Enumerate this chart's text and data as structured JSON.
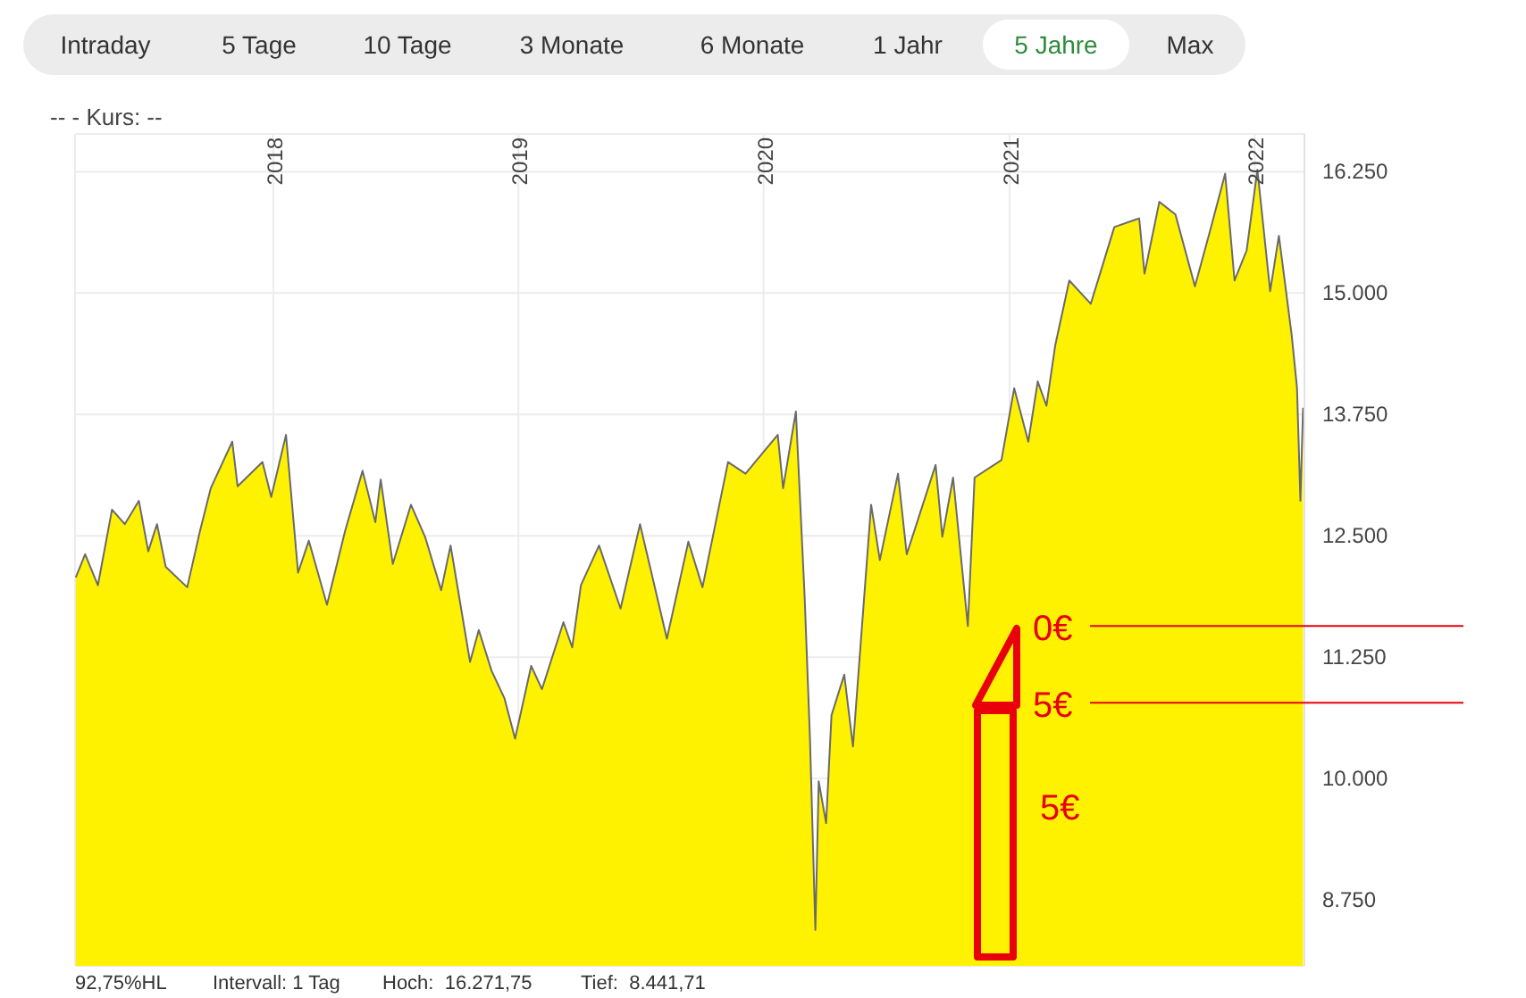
{
  "chart_data": {
    "type": "area",
    "x": [
      "2017-03-13",
      "2017-03-27",
      "2017-04-15",
      "2017-05-06",
      "2017-05-25",
      "2017-06-15",
      "2017-06-29",
      "2017-07-12",
      "2017-07-25",
      "2017-08-26",
      "2017-09-14",
      "2017-09-30",
      "2017-11-01",
      "2017-11-09",
      "2017-12-16",
      "2017-12-29",
      "2018-01-20",
      "2018-02-07",
      "2018-02-23",
      "2018-03-22",
      "2018-04-18",
      "2018-05-14",
      "2018-06-02",
      "2018-06-10",
      "2018-06-28",
      "2018-07-25",
      "2018-08-15",
      "2018-09-08",
      "2018-09-22",
      "2018-10-21",
      "2018-11-03",
      "2018-11-22",
      "2018-12-11",
      "2018-12-27",
      "2019-01-20",
      "2019-02-05",
      "2019-03-09",
      "2019-03-22",
      "2019-04-04",
      "2019-05-01",
      "2019-06-02",
      "2019-07-01",
      "2019-08-10",
      "2019-09-11",
      "2019-10-02",
      "2019-11-09",
      "2019-12-05",
      "2020-01-22",
      "2020-01-30",
      "2020-02-18",
      "2020-03-02",
      "2020-03-10",
      "2020-03-18",
      "2020-03-23",
      "2020-04-03",
      "2020-04-11",
      "2020-04-30",
      "2020-05-13",
      "2020-05-21",
      "2020-06-09",
      "2020-06-22",
      "2020-07-19",
      "2020-08-01",
      "2020-09-13",
      "2020-09-23",
      "2020-10-09",
      "2020-10-31",
      "2020-11-10",
      "2020-12-20",
      "2021-01-08",
      "2021-01-29",
      "2021-02-12",
      "2021-02-25",
      "2021-03-10",
      "2021-03-31",
      "2021-05-02",
      "2021-06-06",
      "2021-07-13",
      "2021-07-21",
      "2021-08-12",
      "2021-09-05",
      "2021-10-04",
      "2021-10-28",
      "2021-11-18",
      "2021-12-02",
      "2021-12-20",
      "2022-01-05",
      "2022-01-24",
      "2022-02-06",
      "2022-02-25",
      "2022-03-05",
      "2022-03-10",
      "2022-03-14"
    ],
    "series": [
      {
        "color": "#fff200",
        "values": [
          12070,
          12310,
          11990,
          12770,
          12620,
          12860,
          12340,
          12620,
          12180,
          11970,
          12550,
          12990,
          13470,
          13010,
          13260,
          12900,
          13540,
          12120,
          12450,
          11790,
          12550,
          13170,
          12640,
          13080,
          12210,
          12820,
          12490,
          11940,
          12400,
          11200,
          11530,
          11110,
          10830,
          10410,
          11160,
          10920,
          11610,
          11350,
          11990,
          12400,
          11750,
          12620,
          11440,
          12440,
          11970,
          13260,
          13140,
          13540,
          12990,
          13780,
          11880,
          10410,
          8440,
          9970,
          9540,
          10650,
          11070,
          10330,
          11070,
          12820,
          12250,
          13140,
          12310,
          13230,
          12490,
          13100,
          11570,
          13100,
          13280,
          14020,
          13470,
          14090,
          13840,
          14460,
          15130,
          14890,
          15680,
          15770,
          15200,
          15940,
          15810,
          15070,
          15680,
          16230,
          15130,
          15440,
          16270,
          15020,
          15590,
          14570,
          14020,
          12860,
          13820
        ]
      }
    ],
    "xlim": [
      "2017-03-12",
      "2022-03-16"
    ],
    "xticks": [
      {
        "value": "2018-01-01",
        "label": "2018"
      },
      {
        "value": "2019-01-01",
        "label": "2019"
      },
      {
        "value": "2020-01-01",
        "label": "2020"
      },
      {
        "value": "2021-01-01",
        "label": "2021"
      },
      {
        "value": "2022-01-01",
        "label": "2022"
      }
    ],
    "ylim": [
      8070,
      16640
    ],
    "yticks": [
      {
        "value": 8750,
        "label": "8.750"
      },
      {
        "value": 10000,
        "label": "10.000"
      },
      {
        "value": 11250,
        "label": "11.250"
      },
      {
        "value": 12500,
        "label": "12.500"
      },
      {
        "value": 13750,
        "label": "13.750"
      },
      {
        "value": 15000,
        "label": "15.000"
      },
      {
        "value": 16250,
        "label": "16.250"
      }
    ],
    "grid": true,
    "ref_lines": [
      {
        "axis": "y",
        "value": 11570,
        "label": "0€",
        "color": "#e8000b"
      },
      {
        "axis": "y",
        "value": 10780,
        "label": "5€",
        "color": "#e8000b"
      }
    ],
    "annotations": [
      "Intraday",
      "5 Tage",
      "10 Tage",
      "3 Monate",
      "6 Monate",
      "1 Jahr",
      "5 Jahre",
      "Max",
      "--  - Kurs: --",
      "5€",
      "92,75%HL",
      "Intervall: 1 Tag",
      "Hoch:  16.271,75",
      "Tief:  8.441,71"
    ]
  }
}
